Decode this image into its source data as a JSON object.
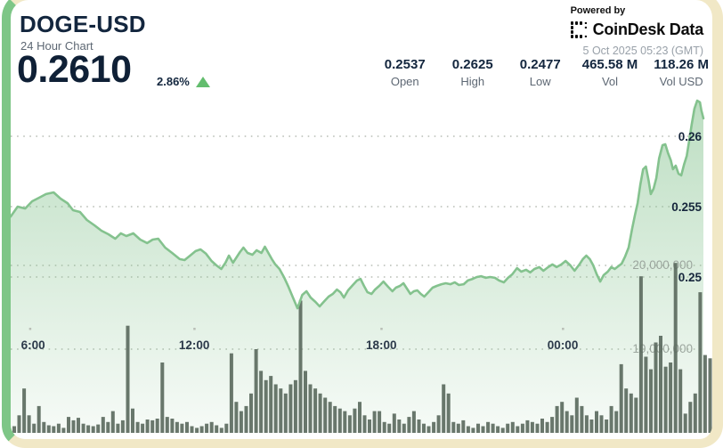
{
  "header": {
    "title": "DOGE-USD",
    "subtitle": "24 Hour Chart",
    "price": "0.2610",
    "change_pct": "2.86%",
    "powered_by": "Powered by",
    "brand": "CoinDesk Data",
    "timestamp": "5 Oct 2025 05:23 (GMT)"
  },
  "stats": [
    {
      "value": "0.2537",
      "label": "Open"
    },
    {
      "value": "0.2625",
      "label": "High"
    },
    {
      "value": "0.2477",
      "label": "Low"
    },
    {
      "value": "465.58 M",
      "label": "Vol"
    },
    {
      "value": "118.26 M",
      "label": "Vol USD"
    }
  ],
  "chart_data": {
    "type": "area",
    "title": "DOGE-USD 24 Hour Chart",
    "x_axis": {
      "unit": "time",
      "ticks": [
        {
          "label": "6:00",
          "pos": 0.015
        },
        {
          "label": "12:00",
          "pos": 0.265
        },
        {
          "label": "18:00",
          "pos": 0.535
        },
        {
          "label": "00:00",
          "pos": 0.797
        }
      ]
    },
    "price_axis": {
      "side": "right",
      "gridlines": [
        {
          "label": "0.26",
          "value": 0.26
        },
        {
          "label": "0.255",
          "value": 0.255
        },
        {
          "label": "0.25",
          "value": 0.25
        }
      ]
    },
    "volume_axis": {
      "gridlines": [
        {
          "label": "20,000,000",
          "value_m": 20
        },
        {
          "label": "10,000,000",
          "value_m": 10
        }
      ]
    },
    "colors": {
      "line": "#84c28e",
      "area": "#84c28e",
      "bars": "#5c6b60",
      "grid": "#b9beb6",
      "price_label": "#16263c",
      "volume_label": "#98a29a",
      "time_label": "#2c3a4a"
    },
    "price_series": [
      [
        0.0,
        0.2543
      ],
      [
        0.01,
        0.255
      ],
      [
        0.021,
        0.25487
      ],
      [
        0.031,
        0.25538
      ],
      [
        0.041,
        0.25563
      ],
      [
        0.051,
        0.25589
      ],
      [
        0.062,
        0.25601
      ],
      [
        0.072,
        0.25557
      ],
      [
        0.082,
        0.25525
      ],
      [
        0.09,
        0.25475
      ],
      [
        0.1,
        0.25462
      ],
      [
        0.11,
        0.25405
      ],
      [
        0.121,
        0.25367
      ],
      [
        0.131,
        0.25329
      ],
      [
        0.141,
        0.25304
      ],
      [
        0.151,
        0.25272
      ],
      [
        0.159,
        0.2531
      ],
      [
        0.167,
        0.25291
      ],
      [
        0.177,
        0.2531
      ],
      [
        0.187,
        0.25266
      ],
      [
        0.197,
        0.25241
      ],
      [
        0.205,
        0.25266
      ],
      [
        0.213,
        0.25272
      ],
      [
        0.223,
        0.25209
      ],
      [
        0.233,
        0.25171
      ],
      [
        0.244,
        0.25127
      ],
      [
        0.251,
        0.2512
      ],
      [
        0.259,
        0.25152
      ],
      [
        0.267,
        0.25184
      ],
      [
        0.274,
        0.25196
      ],
      [
        0.282,
        0.25165
      ],
      [
        0.29,
        0.25114
      ],
      [
        0.297,
        0.25082
      ],
      [
        0.304,
        0.25057
      ],
      [
        0.31,
        0.25101
      ],
      [
        0.315,
        0.25152
      ],
      [
        0.321,
        0.25101
      ],
      [
        0.326,
        0.25139
      ],
      [
        0.331,
        0.25177
      ],
      [
        0.336,
        0.25209
      ],
      [
        0.342,
        0.25171
      ],
      [
        0.349,
        0.25158
      ],
      [
        0.355,
        0.2519
      ],
      [
        0.362,
        0.25171
      ],
      [
        0.367,
        0.25215
      ],
      [
        0.372,
        0.25171
      ],
      [
        0.377,
        0.25127
      ],
      [
        0.382,
        0.25089
      ],
      [
        0.388,
        0.25057
      ],
      [
        0.395,
        0.24994
      ],
      [
        0.401,
        0.2493
      ],
      [
        0.408,
        0.24848
      ],
      [
        0.414,
        0.24778
      ],
      [
        0.421,
        0.24873
      ],
      [
        0.427,
        0.24899
      ],
      [
        0.433,
        0.24854
      ],
      [
        0.44,
        0.24823
      ],
      [
        0.446,
        0.24791
      ],
      [
        0.453,
        0.24829
      ],
      [
        0.459,
        0.24861
      ],
      [
        0.465,
        0.2488
      ],
      [
        0.471,
        0.24911
      ],
      [
        0.476,
        0.24892
      ],
      [
        0.481,
        0.24854
      ],
      [
        0.487,
        0.24905
      ],
      [
        0.494,
        0.24943
      ],
      [
        0.5,
        0.24975
      ],
      [
        0.505,
        0.24987
      ],
      [
        0.51,
        0.24937
      ],
      [
        0.515,
        0.24892
      ],
      [
        0.521,
        0.2488
      ],
      [
        0.526,
        0.24911
      ],
      [
        0.532,
        0.24937
      ],
      [
        0.538,
        0.24968
      ],
      [
        0.545,
        0.2493
      ],
      [
        0.551,
        0.24899
      ],
      [
        0.556,
        0.24924
      ],
      [
        0.562,
        0.24937
      ],
      [
        0.567,
        0.24956
      ],
      [
        0.572,
        0.24918
      ],
      [
        0.577,
        0.2488
      ],
      [
        0.582,
        0.24899
      ],
      [
        0.587,
        0.24905
      ],
      [
        0.592,
        0.2488
      ],
      [
        0.597,
        0.24861
      ],
      [
        0.603,
        0.24892
      ],
      [
        0.609,
        0.24924
      ],
      [
        0.615,
        0.24937
      ],
      [
        0.622,
        0.24949
      ],
      [
        0.628,
        0.24956
      ],
      [
        0.635,
        0.24949
      ],
      [
        0.641,
        0.24962
      ],
      [
        0.647,
        0.24943
      ],
      [
        0.654,
        0.24949
      ],
      [
        0.66,
        0.24975
      ],
      [
        0.667,
        0.24987
      ],
      [
        0.673,
        0.25
      ],
      [
        0.679,
        0.25006
      ],
      [
        0.686,
        0.24994
      ],
      [
        0.692,
        0.25
      ],
      [
        0.699,
        0.24994
      ],
      [
        0.705,
        0.24975
      ],
      [
        0.712,
        0.24962
      ],
      [
        0.718,
        0.24994
      ],
      [
        0.724,
        0.25019
      ],
      [
        0.731,
        0.25063
      ],
      [
        0.737,
        0.25038
      ],
      [
        0.744,
        0.25051
      ],
      [
        0.75,
        0.25032
      ],
      [
        0.756,
        0.25057
      ],
      [
        0.763,
        0.2507
      ],
      [
        0.769,
        0.25044
      ],
      [
        0.776,
        0.2507
      ],
      [
        0.782,
        0.25089
      ],
      [
        0.788,
        0.2507
      ],
      [
        0.795,
        0.25089
      ],
      [
        0.801,
        0.25114
      ],
      [
        0.808,
        0.25082
      ],
      [
        0.814,
        0.25044
      ],
      [
        0.821,
        0.25089
      ],
      [
        0.826,
        0.25127
      ],
      [
        0.831,
        0.25152
      ],
      [
        0.836,
        0.25127
      ],
      [
        0.841,
        0.25082
      ],
      [
        0.846,
        0.25019
      ],
      [
        0.851,
        0.24968
      ],
      [
        0.856,
        0.25013
      ],
      [
        0.862,
        0.25038
      ],
      [
        0.867,
        0.2507
      ],
      [
        0.872,
        0.25057
      ],
      [
        0.877,
        0.25076
      ],
      [
        0.882,
        0.25095
      ],
      [
        0.887,
        0.25146
      ],
      [
        0.892,
        0.25209
      ],
      [
        0.897,
        0.25342
      ],
      [
        0.901,
        0.25437
      ],
      [
        0.905,
        0.25525
      ],
      [
        0.909,
        0.25658
      ],
      [
        0.913,
        0.25766
      ],
      [
        0.917,
        0.25785
      ],
      [
        0.921,
        0.25684
      ],
      [
        0.924,
        0.25589
      ],
      [
        0.928,
        0.25627
      ],
      [
        0.932,
        0.25703
      ],
      [
        0.936,
        0.25842
      ],
      [
        0.941,
        0.25937
      ],
      [
        0.945,
        0.25943
      ],
      [
        0.949,
        0.2588
      ],
      [
        0.953,
        0.25829
      ],
      [
        0.956,
        0.25766
      ],
      [
        0.96,
        0.25791
      ],
      [
        0.964,
        0.25734
      ],
      [
        0.968,
        0.25722
      ],
      [
        0.972,
        0.25798
      ],
      [
        0.976,
        0.25861
      ],
      [
        0.979,
        0.25956
      ],
      [
        0.983,
        0.26082
      ],
      [
        0.987,
        0.26196
      ],
      [
        0.991,
        0.26253
      ],
      [
        0.995,
        0.26241
      ],
      [
        0.997,
        0.26184
      ],
      [
        1.0,
        0.26127
      ]
    ],
    "volume_series_m": [
      0.8,
      2.1,
      5.3,
      2.1,
      1.1,
      3.2,
      1.3,
      0.9,
      0.8,
      1.1,
      0.6,
      1.9,
      1.5,
      1.8,
      1.1,
      0.9,
      0.8,
      1.0,
      1.9,
      1.3,
      2.6,
      1.1,
      1.5,
      12.8,
      2.9,
      1.3,
      1.1,
      1.6,
      1.5,
      1.7,
      8.4,
      1.9,
      1.7,
      1.3,
      1.1,
      1.3,
      0.8,
      0.6,
      0.8,
      1.1,
      1.3,
      0.9,
      0.6,
      1.1,
      9.5,
      3.7,
      2.6,
      3.2,
      4.7,
      10.0,
      7.4,
      6.3,
      6.8,
      5.8,
      5.3,
      4.7,
      5.8,
      6.3,
      15.8,
      7.4,
      5.8,
      5.3,
      4.7,
      4.2,
      3.7,
      3.2,
      2.9,
      2.6,
      2.1,
      2.9,
      3.7,
      2.1,
      1.6,
      2.6,
      2.6,
      1.3,
      1.1,
      2.3,
      1.6,
      1.1,
      1.9,
      2.6,
      1.6,
      1.1,
      0.8,
      1.3,
      2.1,
      5.8,
      4.7,
      1.3,
      1.1,
      1.5,
      0.8,
      0.6,
      1.1,
      0.8,
      1.3,
      1.1,
      0.8,
      0.6,
      1.1,
      1.3,
      0.8,
      1.1,
      1.5,
      1.3,
      1.1,
      1.7,
      1.3,
      1.9,
      3.2,
      3.7,
      2.6,
      2.1,
      4.2,
      3.2,
      2.1,
      1.6,
      2.6,
      2.1,
      1.6,
      3.2,
      2.6,
      8.2,
      5.3,
      4.7,
      4.2,
      18.7,
      9.1,
      7.6,
      10.8,
      11.6,
      7.9,
      8.4,
      20.3,
      7.6,
      2.3,
      3.7,
      4.7,
      16.8,
      9.3,
      8.9
    ]
  }
}
